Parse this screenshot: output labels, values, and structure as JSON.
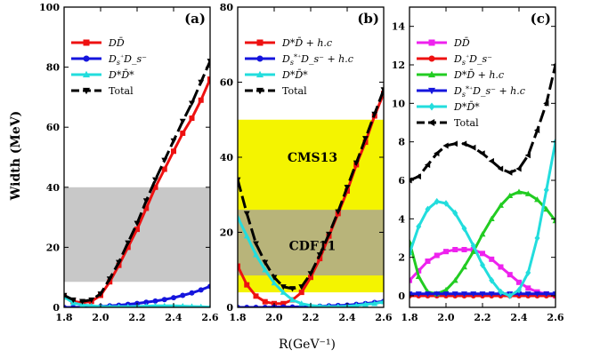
{
  "figure": {
    "ylabel": "Width (MeV)",
    "xlabel": "R(GeV⁻¹)"
  },
  "chart_data": [
    {
      "type": "line",
      "panel_label": "(a)",
      "xlim": [
        1.8,
        2.6
      ],
      "ylim": [
        0,
        100
      ],
      "xticks": [
        1.8,
        2.0,
        2.2,
        2.4,
        2.6
      ],
      "yticks": [
        0,
        20,
        40,
        60,
        80,
        100
      ],
      "legend_position": "top-left",
      "bands": [
        {
          "y": [
            8.5,
            40
          ],
          "color": "#c8c8c8",
          "label": ""
        }
      ],
      "series": [
        {
          "name": "DD̄",
          "color": "#ee1111",
          "marker": "square",
          "dash": "solid",
          "x": [
            1.8,
            1.85,
            1.9,
            1.95,
            2.0,
            2.05,
            2.1,
            2.15,
            2.2,
            2.25,
            2.3,
            2.35,
            2.4,
            2.45,
            2.5,
            2.55,
            2.6
          ],
          "y": [
            3.5,
            2.0,
            1.5,
            2.0,
            4.0,
            8.5,
            14.0,
            20.0,
            26.0,
            33.0,
            40.0,
            46.0,
            52.0,
            58.0,
            63.0,
            69.0,
            76.0
          ]
        },
        {
          "name": "D_s⁺D_s⁻",
          "color": "#1515dd",
          "marker": "circle",
          "dash": "solid",
          "x": [
            1.8,
            1.85,
            1.9,
            1.95,
            2.0,
            2.05,
            2.1,
            2.15,
            2.2,
            2.25,
            2.3,
            2.35,
            2.4,
            2.45,
            2.5,
            2.55,
            2.6
          ],
          "y": [
            0.0,
            0.0,
            0.1,
            0.2,
            0.3,
            0.5,
            0.7,
            1.0,
            1.3,
            1.7,
            2.1,
            2.6,
            3.2,
            4.0,
            4.8,
            5.8,
            7.0
          ]
        },
        {
          "name": "D*D̄*",
          "color": "#22dddd",
          "marker": "triangle-up",
          "dash": "solid",
          "x": [
            1.8,
            1.85,
            1.9,
            1.95,
            2.0,
            2.05,
            2.1,
            2.15,
            2.2,
            2.25,
            2.3,
            2.35,
            2.4,
            2.45,
            2.5,
            2.55,
            2.6
          ],
          "y": [
            3.5,
            1.5,
            0.8,
            0.5,
            0.3,
            0.2,
            0.2,
            0.2,
            0.3,
            0.4,
            0.5,
            0.5,
            0.5,
            0.4,
            0.3,
            0.2,
            0.1
          ]
        },
        {
          "name": "Total",
          "color": "#000000",
          "marker": "triangle-down",
          "dash": "dash",
          "x": [
            1.8,
            1.85,
            1.9,
            1.95,
            2.0,
            2.05,
            2.1,
            2.15,
            2.2,
            2.25,
            2.3,
            2.35,
            2.4,
            2.45,
            2.5,
            2.55,
            2.6
          ],
          "y": [
            4.0,
            2.5,
            2.0,
            2.5,
            4.5,
            9.5,
            15.0,
            21.5,
            28.0,
            35.5,
            42.5,
            49.0,
            55.5,
            62.0,
            68.0,
            75.0,
            82.0
          ]
        }
      ]
    },
    {
      "type": "line",
      "panel_label": "(b)",
      "xlim": [
        1.8,
        2.6
      ],
      "ylim": [
        0,
        80
      ],
      "xticks": [
        1.8,
        2.0,
        2.2,
        2.4,
        2.6
      ],
      "yticks": [
        0,
        20,
        40,
        60,
        80
      ],
      "legend_position": "top-left",
      "bands": [
        {
          "y": [
            4,
            50
          ],
          "color": "#f4f400",
          "label": "CMS13"
        },
        {
          "y": [
            8.5,
            26
          ],
          "color": "#b8b47a",
          "label": "CDF11"
        }
      ],
      "series": [
        {
          "name": "D*D̄ + h.c",
          "color": "#ee1111",
          "marker": "square",
          "dash": "solid",
          "x": [
            1.8,
            1.85,
            1.9,
            1.95,
            2.0,
            2.05,
            2.1,
            2.15,
            2.2,
            2.25,
            2.3,
            2.35,
            2.4,
            2.45,
            2.5,
            2.55,
            2.6
          ],
          "y": [
            11.0,
            6.0,
            3.0,
            1.5,
            1.0,
            1.0,
            2.0,
            4.0,
            8.0,
            13.0,
            19.0,
            25.0,
            31.0,
            38.0,
            44.0,
            51.0,
            57.0
          ]
        },
        {
          "name": "D_s*⁺D_s⁻ + h.c",
          "color": "#1515dd",
          "marker": "circle",
          "dash": "solid",
          "x": [
            1.8,
            1.85,
            1.9,
            1.95,
            2.0,
            2.05,
            2.1,
            2.15,
            2.2,
            2.25,
            2.3,
            2.35,
            2.4,
            2.45,
            2.5,
            2.55,
            2.6
          ],
          "y": [
            0.0,
            0.0,
            0.0,
            0.0,
            0.1,
            0.1,
            0.1,
            0.2,
            0.2,
            0.3,
            0.4,
            0.5,
            0.6,
            0.8,
            1.0,
            1.3,
            1.6
          ]
        },
        {
          "name": "D*D̄*",
          "color": "#22dddd",
          "marker": "triangle-up",
          "dash": "solid",
          "x": [
            1.8,
            1.85,
            1.9,
            1.95,
            2.0,
            2.05,
            2.1,
            2.15,
            2.2,
            2.25,
            2.3,
            2.35,
            2.4,
            2.45,
            2.5,
            2.55,
            2.6
          ],
          "y": [
            24.0,
            19.0,
            14.0,
            10.0,
            6.5,
            4.0,
            2.0,
            1.0,
            0.5,
            0.3,
            0.2,
            0.2,
            0.3,
            0.5,
            0.8,
            1.0,
            1.5
          ]
        },
        {
          "name": "Total",
          "color": "#000000",
          "marker": "triangle-down",
          "dash": "dash",
          "x": [
            1.8,
            1.85,
            1.9,
            1.95,
            2.0,
            2.05,
            2.1,
            2.15,
            2.2,
            2.25,
            2.3,
            2.35,
            2.4,
            2.45,
            2.5,
            2.55,
            2.6
          ],
          "y": [
            34.0,
            25.0,
            17.0,
            12.0,
            8.0,
            5.5,
            5.0,
            5.5,
            9.0,
            14.0,
            19.5,
            25.5,
            32.0,
            38.5,
            45.0,
            51.5,
            58.0
          ]
        }
      ]
    },
    {
      "type": "line",
      "panel_label": "(c)",
      "xlim": [
        1.8,
        2.6
      ],
      "ylim": [
        -0.6,
        15
      ],
      "xticks": [
        1.8,
        2.0,
        2.2,
        2.4,
        2.6
      ],
      "yticks": [
        0,
        2,
        4,
        6,
        8,
        10,
        12,
        14
      ],
      "legend_position": "top-left",
      "bands": [],
      "series": [
        {
          "name": "DD̄",
          "color": "#ee22ee",
          "marker": "square",
          "dash": "solid",
          "x": [
            1.8,
            1.85,
            1.9,
            1.95,
            2.0,
            2.05,
            2.1,
            2.15,
            2.2,
            2.25,
            2.3,
            2.35,
            2.4,
            2.45,
            2.5,
            2.55,
            2.6
          ],
          "y": [
            0.8,
            1.3,
            1.8,
            2.1,
            2.3,
            2.4,
            2.4,
            2.4,
            2.2,
            1.9,
            1.5,
            1.1,
            0.7,
            0.4,
            0.2,
            0.1,
            0.0
          ]
        },
        {
          "name": "D_s⁺D_s⁻",
          "color": "#ee1111",
          "marker": "circle",
          "dash": "solid",
          "x": [
            1.8,
            1.85,
            1.9,
            1.95,
            2.0,
            2.05,
            2.1,
            2.15,
            2.2,
            2.25,
            2.3,
            2.35,
            2.4,
            2.45,
            2.5,
            2.55,
            2.6
          ],
          "y": [
            0.0,
            0.0,
            0.0,
            0.0,
            0.0,
            0.0,
            0.0,
            0.0,
            0.0,
            0.0,
            0.0,
            0.0,
            0.0,
            0.0,
            0.0,
            0.0,
            0.0
          ]
        },
        {
          "name": "D*D̄ + h.c",
          "color": "#22cc22",
          "marker": "triangle-up",
          "dash": "solid",
          "x": [
            1.8,
            1.85,
            1.9,
            1.95,
            2.0,
            2.05,
            2.1,
            2.15,
            2.2,
            2.25,
            2.3,
            2.35,
            2.4,
            2.45,
            2.5,
            2.55,
            2.6
          ],
          "y": [
            2.8,
            1.0,
            0.2,
            0.1,
            0.3,
            0.8,
            1.5,
            2.3,
            3.2,
            4.0,
            4.7,
            5.2,
            5.4,
            5.3,
            5.0,
            4.5,
            3.9
          ]
        },
        {
          "name": "D_s*⁺D_s⁻ + h.c",
          "color": "#1515dd",
          "marker": "triangle-down",
          "dash": "solid",
          "x": [
            1.8,
            1.85,
            1.9,
            1.95,
            2.0,
            2.05,
            2.1,
            2.15,
            2.2,
            2.25,
            2.3,
            2.35,
            2.4,
            2.45,
            2.5,
            2.55,
            2.6
          ],
          "y": [
            0.1,
            0.1,
            0.1,
            0.1,
            0.1,
            0.1,
            0.1,
            0.1,
            0.1,
            0.1,
            0.1,
            0.1,
            0.1,
            0.1,
            0.1,
            0.1,
            0.1
          ]
        },
        {
          "name": "D*D̄*",
          "color": "#22dddd",
          "marker": "diamond",
          "dash": "solid",
          "x": [
            1.8,
            1.85,
            1.9,
            1.95,
            2.0,
            2.05,
            2.1,
            2.15,
            2.2,
            2.25,
            2.3,
            2.35,
            2.4,
            2.45,
            2.5,
            2.55,
            2.6
          ],
          "y": [
            2.2,
            3.6,
            4.5,
            4.9,
            4.8,
            4.3,
            3.5,
            2.6,
            1.6,
            0.8,
            0.2,
            0.0,
            0.3,
            1.2,
            3.0,
            5.5,
            8.0
          ]
        },
        {
          "name": "Total",
          "color": "#000000",
          "marker": "triangle-left",
          "dash": "dash",
          "x": [
            1.8,
            1.85,
            1.9,
            1.95,
            2.0,
            2.05,
            2.1,
            2.15,
            2.2,
            2.25,
            2.3,
            2.35,
            2.4,
            2.45,
            2.5,
            2.55,
            2.6
          ],
          "y": [
            6.0,
            6.2,
            6.8,
            7.4,
            7.8,
            7.9,
            7.9,
            7.7,
            7.4,
            7.0,
            6.6,
            6.4,
            6.6,
            7.3,
            8.6,
            10.0,
            12.0
          ]
        }
      ]
    }
  ]
}
